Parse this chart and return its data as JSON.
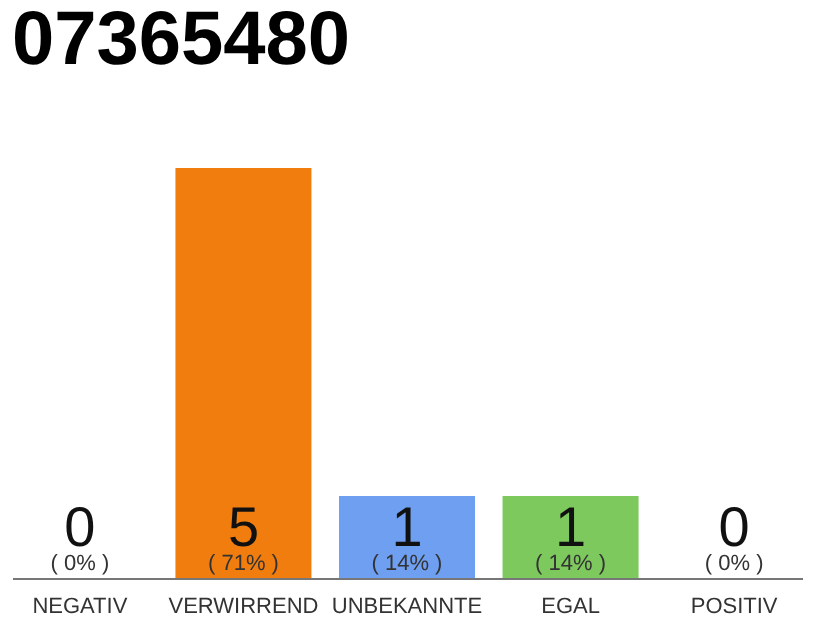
{
  "chart_data": {
    "type": "bar",
    "title": "07365480",
    "categories": [
      "NEGATIV",
      "VERWIRREND",
      "UNBEKANNTE",
      "EGAL",
      "POSITIV"
    ],
    "values": [
      0,
      5,
      1,
      1,
      0
    ],
    "colors": [
      "#bdbdbd",
      "#f07d0d",
      "#6e9ff1",
      "#7dc95e",
      "#bdbdbd"
    ],
    "data_labels": true,
    "annotations": [
      {
        "text": "( 0% )",
        "x": "NEGATIV",
        "y": 0
      },
      {
        "text": "( 71% )",
        "x": "VERWIRREND",
        "y": 0
      },
      {
        "text": "( 14% )",
        "x": "UNBEKANNTE",
        "y": 0
      },
      {
        "text": "( 14% )",
        "x": "EGAL",
        "y": 0
      },
      {
        "text": "( 0% )",
        "x": "POSITIV",
        "y": 0
      }
    ],
    "tick_labels": "x",
    "grid": false
  }
}
